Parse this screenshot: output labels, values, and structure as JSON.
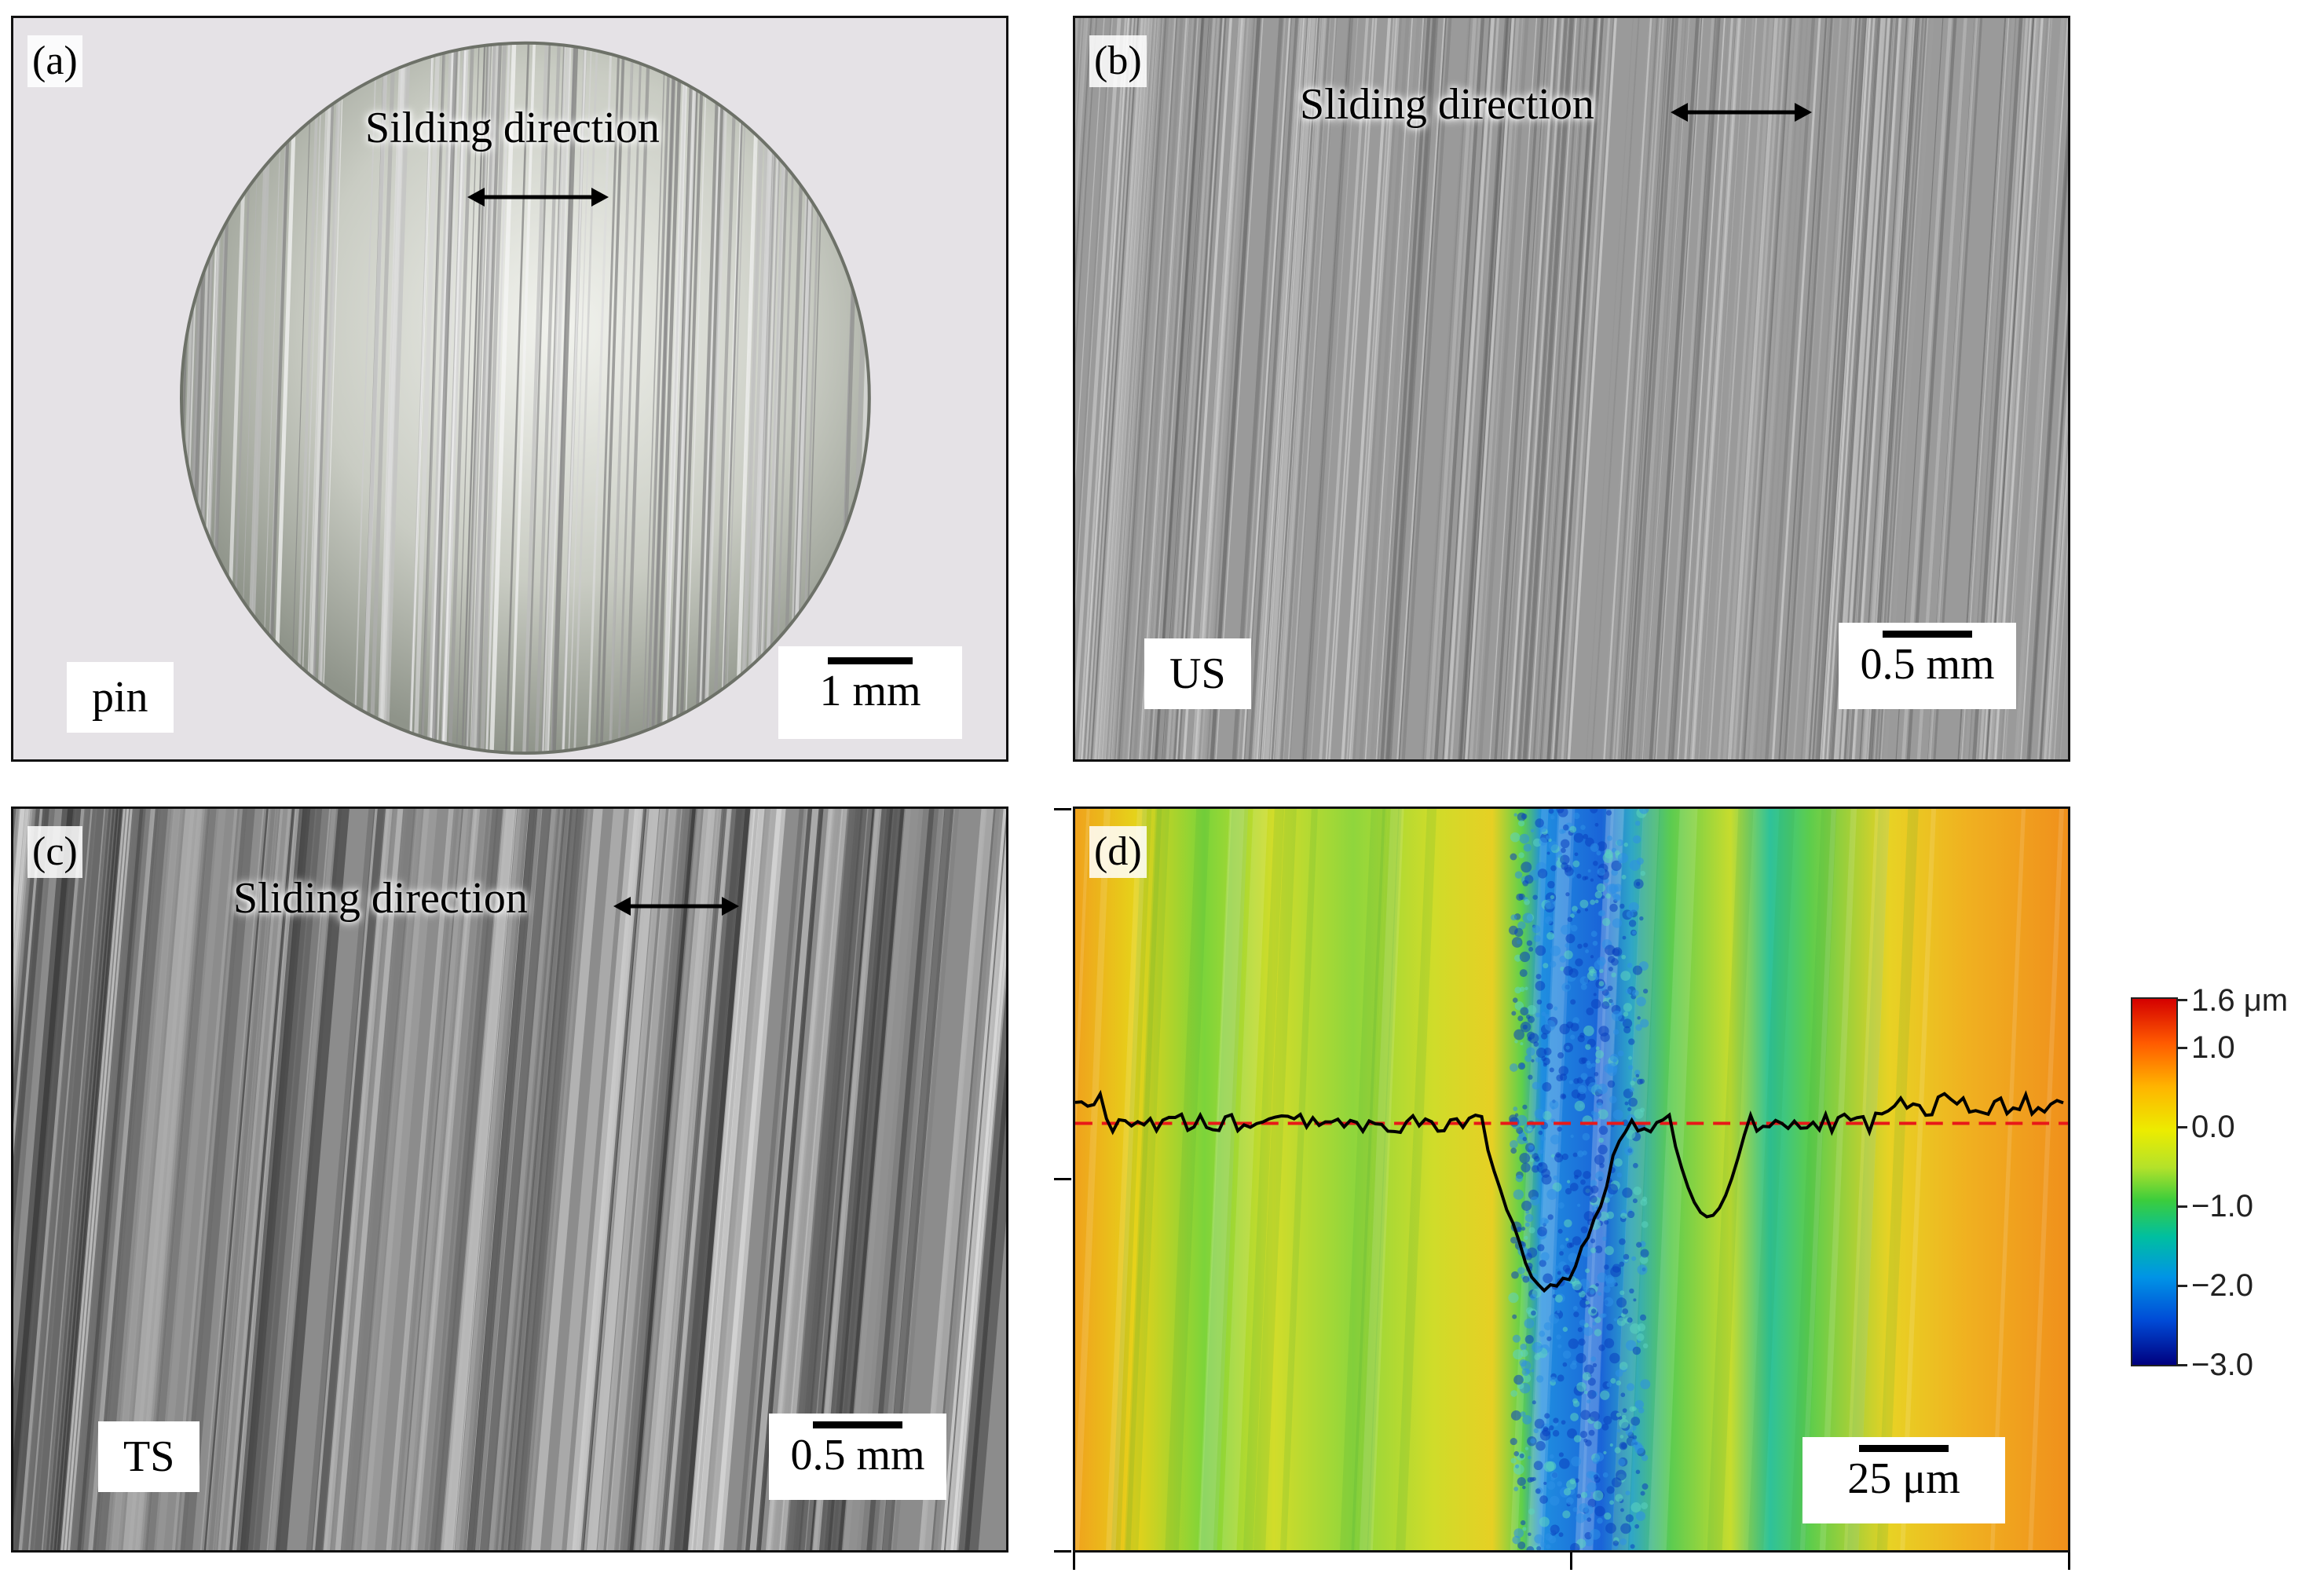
{
  "panels": {
    "a": {
      "label": "(a)",
      "tag": "pin",
      "direction": "Silding direction",
      "scale": "1 mm"
    },
    "b": {
      "label": "(b)",
      "tag": "US",
      "direction": "Sliding direction",
      "scale": "0.5 mm"
    },
    "c": {
      "label": "(c)",
      "tag": "TS",
      "direction": "Sliding direction",
      "scale": "0.5 mm"
    },
    "d": {
      "label": "(d)",
      "scale": "25 μm"
    }
  },
  "colorbar": {
    "ticks": [
      "1.6 μm",
      "1.0",
      "0.0",
      "−1.0",
      "−2.0",
      "−3.0"
    ],
    "values": [
      1.6,
      1.0,
      0.0,
      -1.0,
      -2.0,
      -3.0
    ],
    "colors": [
      "#d40000",
      "#ff8c00",
      "#ecec00",
      "#3ccd3c",
      "#0094e6",
      "#00007f"
    ]
  },
  "profile": {
    "reference_line_color": "#e81818",
    "line_color": "#000000"
  }
}
